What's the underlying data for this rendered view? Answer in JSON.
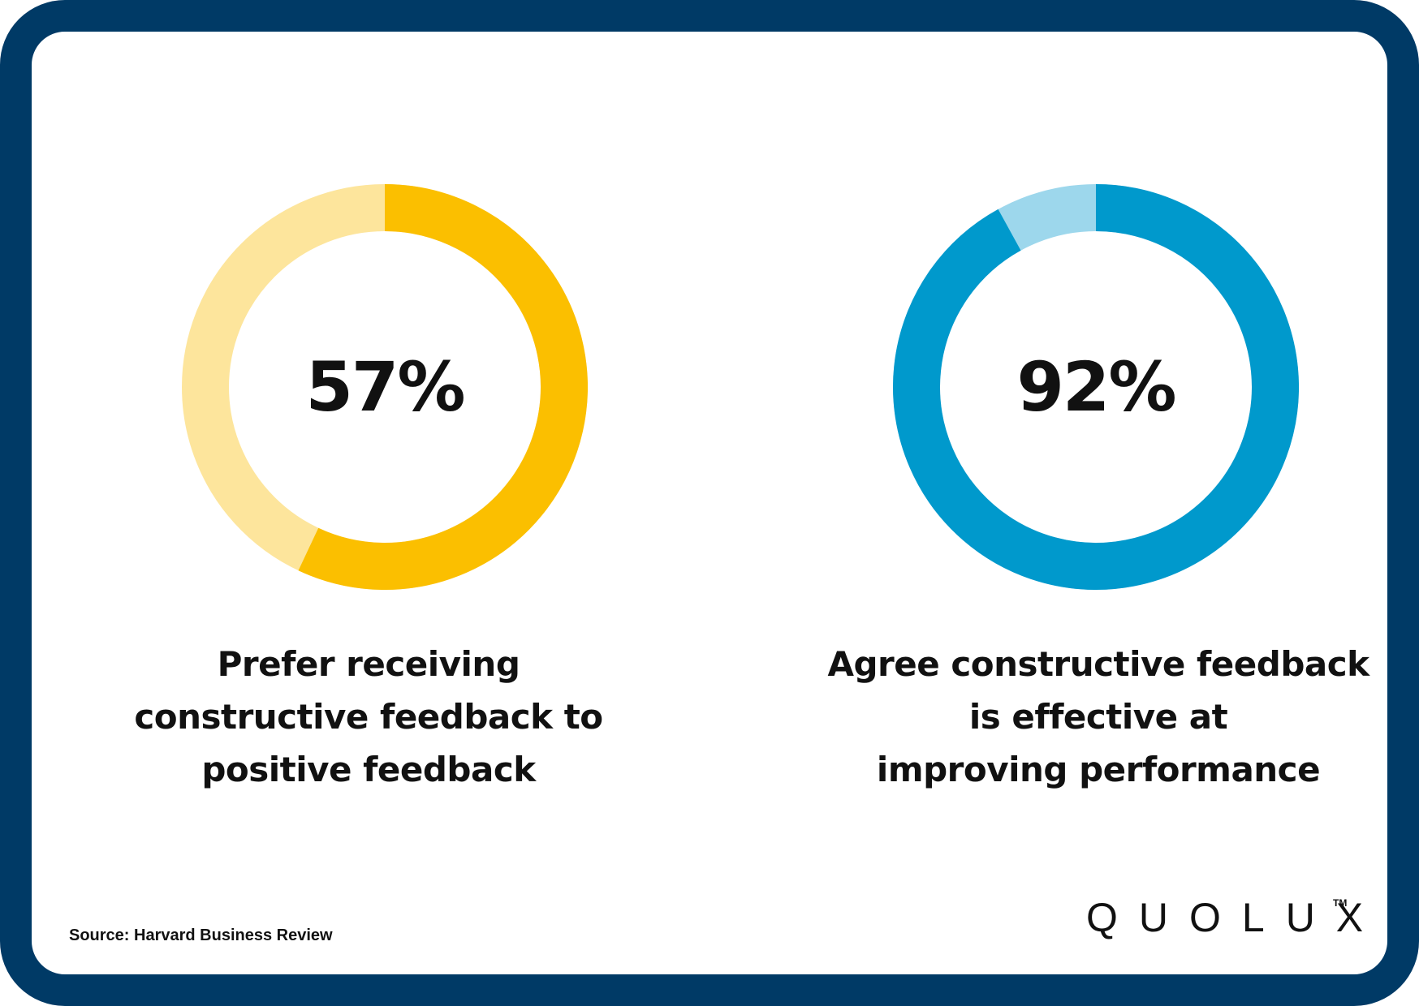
{
  "chart_data": [
    {
      "type": "pie",
      "variant": "donut",
      "value_percent": 57,
      "label": "57%",
      "caption": [
        "Prefer receiving",
        "constructive feedback to",
        "positive feedback"
      ],
      "colors": {
        "filled": "#fbbf00",
        "remainder": "#fde59c"
      }
    },
    {
      "type": "pie",
      "variant": "donut",
      "value_percent": 92,
      "label": "92%",
      "caption": [
        "Agree constructive feedback",
        "is effective at",
        "improving performance"
      ],
      "colors": {
        "filled": "#0099cc",
        "remainder": "#9dd7ec"
      }
    }
  ],
  "source": "Source: Harvard Business Review",
  "logo": {
    "wordmark": "QuoLux",
    "display": "QUOLUX",
    "trademark": "TM"
  },
  "colors": {
    "frame": "#003a66",
    "background": "#ffffff",
    "text": "#111111"
  }
}
